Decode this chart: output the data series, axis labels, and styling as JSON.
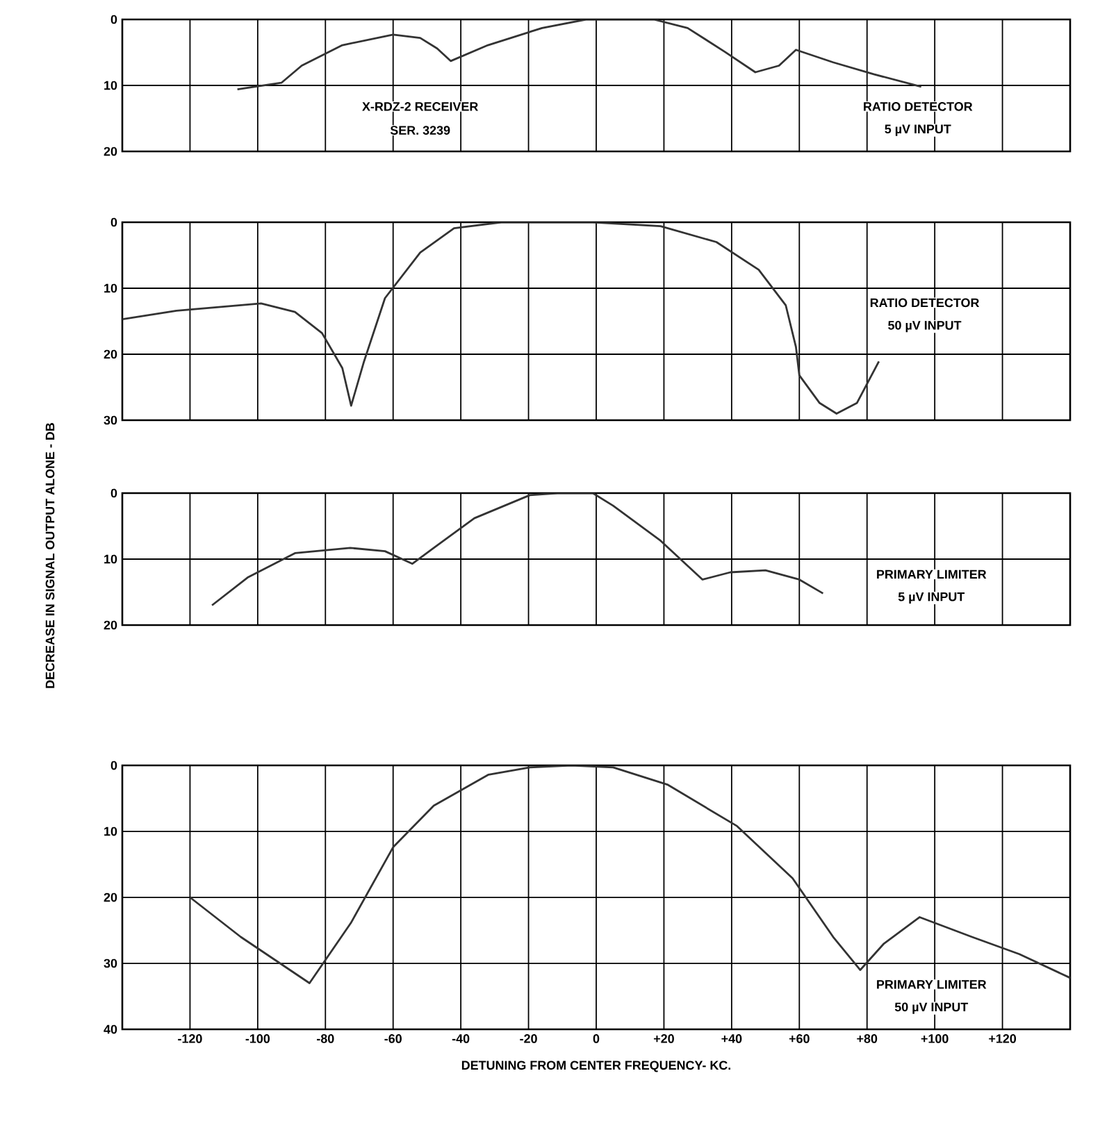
{
  "chart_data": [
    {
      "type": "line",
      "xlim": [
        -140,
        140
      ],
      "ylim": [
        20,
        0
      ],
      "yticks": [
        0,
        10,
        20
      ],
      "grid": true,
      "tick_labels": "y",
      "xticks": [
        {
          "value": -120,
          "label": null
        },
        {
          "value": -100,
          "label": null
        },
        {
          "value": -80,
          "label": null
        },
        {
          "value": -60,
          "label": null
        },
        {
          "value": -40,
          "label": null
        },
        {
          "value": -20,
          "label": null
        },
        {
          "value": 0,
          "label": null
        },
        {
          "value": 20,
          "label": null
        },
        {
          "value": 40,
          "label": null
        },
        {
          "value": 60,
          "label": null
        },
        {
          "value": 80,
          "label": null
        },
        {
          "value": 100,
          "label": null
        },
        {
          "value": 120,
          "label": null
        }
      ],
      "series": [
        {
          "color": "#333333",
          "x": [
            -106,
            -93,
            -87,
            -75,
            -60,
            -52,
            -47,
            -43,
            -32,
            -16,
            -3,
            17,
            27,
            38,
            47,
            54,
            59,
            70,
            82,
            96
          ],
          "values": [
            10.6,
            9.6,
            7.0,
            3.9,
            2.3,
            2.8,
            4.4,
            6.3,
            3.9,
            1.3,
            0,
            0,
            1.3,
            4.9,
            8.0,
            7.0,
            4.6,
            6.5,
            8.3,
            10.2
          ]
        }
      ],
      "annotations": [
        "X-RDZ-2 RECEIVER",
        "SER. 3239",
        "RATIO DETECTOR",
        "5 µV INPUT"
      ]
    },
    {
      "type": "line",
      "xlim": [
        -140,
        140
      ],
      "ylim": [
        30,
        0
      ],
      "yticks": [
        0,
        10,
        20,
        30
      ],
      "grid": true,
      "tick_labels": "y",
      "ylabel": "DECREASE IN SIGNAL OUTPUT ALONE - DB",
      "xticks": [
        {
          "value": -120,
          "label": null
        },
        {
          "value": -100,
          "label": null
        },
        {
          "value": -80,
          "label": null
        },
        {
          "value": -60,
          "label": null
        },
        {
          "value": -40,
          "label": null
        },
        {
          "value": -20,
          "label": null
        },
        {
          "value": 0,
          "label": null
        },
        {
          "value": 20,
          "label": null
        },
        {
          "value": 40,
          "label": null
        },
        {
          "value": 60,
          "label": null
        },
        {
          "value": 80,
          "label": null
        },
        {
          "value": 100,
          "label": null
        },
        {
          "value": 120,
          "label": null
        }
      ],
      "series": [
        {
          "color": "#333333",
          "x": [
            -140,
            -124,
            -99,
            -89,
            -81,
            -75,
            -72.4,
            -68.6,
            -62.4,
            -52,
            -42,
            -28,
            -1,
            19,
            35.5,
            48,
            56,
            59,
            60,
            66,
            71,
            77,
            83.5
          ],
          "values": [
            14.7,
            13.4,
            12.3,
            13.6,
            16.8,
            22.1,
            27.8,
            21.1,
            11.5,
            4.6,
            0.9,
            0,
            0,
            0.6,
            3.0,
            7.2,
            12.6,
            18.9,
            23.2,
            27.4,
            29,
            27.4,
            21.1
          ]
        }
      ],
      "annotations": [
        "RATIO DETECTOR",
        "50 µV INPUT"
      ]
    },
    {
      "type": "line",
      "xlim": [
        -140,
        140
      ],
      "ylim": [
        20,
        0
      ],
      "yticks": [
        0,
        10,
        20
      ],
      "grid": true,
      "tick_labels": "y",
      "xticks": [
        {
          "value": -120,
          "label": null
        },
        {
          "value": -100,
          "label": null
        },
        {
          "value": -80,
          "label": null
        },
        {
          "value": -60,
          "label": null
        },
        {
          "value": -40,
          "label": null
        },
        {
          "value": -20,
          "label": null
        },
        {
          "value": 0,
          "label": null
        },
        {
          "value": 20,
          "label": null
        },
        {
          "value": 40,
          "label": null
        },
        {
          "value": 60,
          "label": null
        },
        {
          "value": 80,
          "label": null
        },
        {
          "value": 100,
          "label": null
        },
        {
          "value": 120,
          "label": null
        }
      ],
      "series": [
        {
          "color": "#333333",
          "x": [
            -113.5,
            -103,
            -89,
            -72.7,
            -62.4,
            -54.3,
            -48,
            -36,
            -19.6,
            -11.4,
            -1,
            5,
            19,
            31.4,
            39.6,
            50,
            60,
            67
          ],
          "values": [
            17,
            12.8,
            9.1,
            8.3,
            8.8,
            10.7,
            8.3,
            3.8,
            0.3,
            0,
            0,
            1.9,
            7.2,
            13.1,
            12.0,
            11.7,
            13.1,
            15.2
          ]
        }
      ],
      "annotations": [
        "PRIMARY LIMITER",
        "5 µV INPUT"
      ]
    },
    {
      "type": "line",
      "xlim": [
        -140,
        140
      ],
      "ylim": [
        40,
        0
      ],
      "yticks": [
        0,
        10,
        20,
        30,
        40
      ],
      "grid": true,
      "xlabel": "DETUNING FROM CENTER FREQUENCY- KC.",
      "xticks": [
        {
          "value": -120,
          "label": "-120"
        },
        {
          "value": -100,
          "label": "-100"
        },
        {
          "value": -80,
          "label": "-80"
        },
        {
          "value": -60,
          "label": "-60"
        },
        {
          "value": -40,
          "label": "-40"
        },
        {
          "value": -20,
          "label": "-20"
        },
        {
          "value": 0,
          "label": "0"
        },
        {
          "value": 20,
          "label": "+20"
        },
        {
          "value": 40,
          "label": "+40"
        },
        {
          "value": 60,
          "label": "+60"
        },
        {
          "value": 80,
          "label": "+80"
        },
        {
          "value": 100,
          "label": "+100"
        },
        {
          "value": 120,
          "label": "+120"
        }
      ],
      "series": [
        {
          "color": "#333333",
          "x": [
            -120,
            -105,
            -84.7,
            -72.5,
            -60,
            -48,
            -31.8,
            -19.6,
            -7.3,
            5,
            21,
            41.6,
            58,
            70,
            78,
            85,
            95.5,
            111,
            125,
            140
          ],
          "values": [
            20,
            26,
            33,
            23.9,
            12.4,
            6.1,
            1.4,
            0.3,
            0,
            0.3,
            2.9,
            9.2,
            17.1,
            26,
            31,
            27,
            23,
            26,
            28.6,
            32.2
          ]
        }
      ],
      "annotations": [
        "PRIMARY LIMITER",
        "50 µV INPUT"
      ]
    }
  ]
}
